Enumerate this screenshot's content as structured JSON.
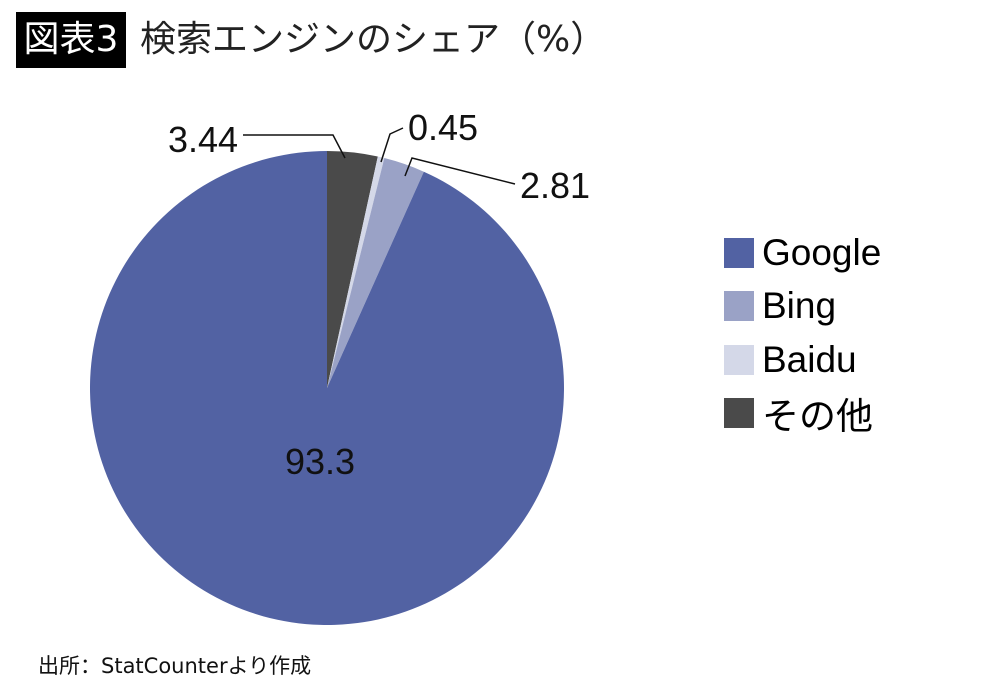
{
  "header": {
    "badge": "図表3",
    "title": "検索エンジンのシェア（%）"
  },
  "chart_data": {
    "type": "pie",
    "title": "検索エンジンのシェア（%）",
    "start": "12 o'clock, clockwise",
    "slices": [
      {
        "name": "その他",
        "value": 3.44,
        "label": "3.44",
        "color": "#4a4a4a"
      },
      {
        "name": "Baidu",
        "value": 0.45,
        "label": "0.45",
        "color": "#d4d8e8"
      },
      {
        "name": "Bing",
        "value": 2.81,
        "label": "2.81",
        "color": "#9aa2c6"
      },
      {
        "name": "Google",
        "value": 93.3,
        "label": "93.3",
        "color": "#5262a3"
      }
    ],
    "legend": [
      "Google",
      "Bing",
      "Baidu",
      "その他"
    ],
    "legend_placement": "right"
  },
  "footer": {
    "source": "出所：StatCounterより作成"
  }
}
